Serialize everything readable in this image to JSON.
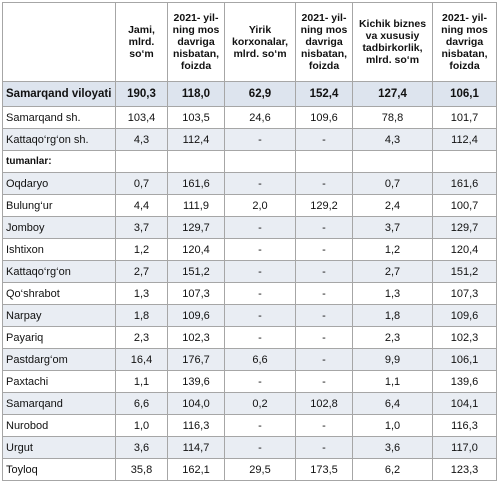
{
  "table": {
    "columns": [
      "Jami, mlrd. so‘m",
      "2021- yil-ning mos davriga nisbatan, foizda",
      "Yirik korxonalar, mlrd. so‘m",
      "2021- yil-ning mos davriga nisbatan, foizda",
      "Kichik biznes va xususiy tadbirkorlik, mlrd. so‘m",
      "2021- yil-ning mos davriga nisbatan, foizda"
    ],
    "rows": [
      [
        "Samarqand viloyati",
        "190,3",
        "118,0",
        "62,9",
        "152,4",
        "127,4",
        "106,1"
      ],
      [
        "Samarqand sh.",
        "103,4",
        "103,5",
        "24,6",
        "109,6",
        "78,8",
        "101,7"
      ],
      [
        "Kattaqo‘rg‘on sh.",
        "4,3",
        "112,4",
        "-",
        "-",
        "4,3",
        "112,4"
      ],
      [
        "tumanlar:"
      ],
      [
        "Oqdaryo",
        "0,7",
        "161,6",
        "-",
        "-",
        "0,7",
        "161,6"
      ],
      [
        "Bulung‘ur",
        "4,4",
        "111,9",
        "2,0",
        "129,2",
        "2,4",
        "100,7"
      ],
      [
        "Jomboy",
        "3,7",
        "129,7",
        "-",
        "-",
        "3,7",
        "129,7"
      ],
      [
        "Ishtixon",
        "1,2",
        "120,4",
        "-",
        "-",
        "1,2",
        "120,4"
      ],
      [
        "Kattaqo‘rg‘on",
        "2,7",
        "151,2",
        "-",
        "-",
        "2,7",
        "151,2"
      ],
      [
        "Qo‘shrabot",
        "1,3",
        "107,3",
        "-",
        "-",
        "1,3",
        "107,3"
      ],
      [
        "Narpay",
        "1,8",
        "109,6",
        "-",
        "-",
        "1,8",
        "109,6"
      ],
      [
        "Payariq",
        "2,3",
        "102,3",
        "-",
        "-",
        "2,3",
        "102,3"
      ],
      [
        "Pastdarg‘om",
        "16,4",
        "176,7",
        "6,6",
        "-",
        "9,9",
        "106,1"
      ],
      [
        "Paxtachi",
        "1,1",
        "139,6",
        "-",
        "-",
        "1,1",
        "139,6"
      ],
      [
        "Samarqand",
        "6,6",
        "104,0",
        "0,2",
        "102,8",
        "6,4",
        "104,1"
      ],
      [
        "Nurobod",
        "1,0",
        "116,3",
        "-",
        "-",
        "1,0",
        "116,3"
      ],
      [
        "Urgut",
        "3,6",
        "114,7",
        "-",
        "-",
        "3,6",
        "117,0"
      ],
      [
        "Toyloq",
        "35,8",
        "162,1",
        "29,5",
        "173,5",
        "6,2",
        "123,3"
      ]
    ]
  }
}
